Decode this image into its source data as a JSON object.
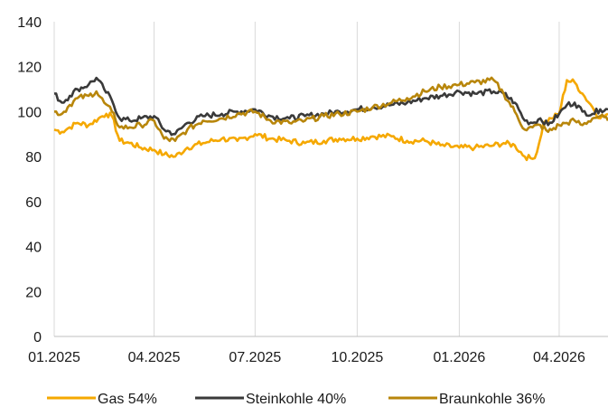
{
  "chart_data": {
    "type": "line",
    "title": "",
    "xlabel": "",
    "ylabel": "",
    "ylim": [
      0,
      140
    ],
    "y_ticks": [
      0,
      20,
      40,
      60,
      80,
      100,
      120,
      140
    ],
    "x_range": [
      "2025-01-01",
      "2026-05-15"
    ],
    "x_tick_labels": [
      "01.2025",
      "04.2025",
      "07.2025",
      "10.2025",
      "01.2026",
      "04.2026"
    ],
    "x_tick_dates": [
      "2025-01-01",
      "2025-04-01",
      "2025-07-01",
      "2025-10-01",
      "2026-01-01",
      "2026-04-01"
    ],
    "grid": {
      "vertical": true,
      "horizontal": false
    },
    "legend_position": "bottom",
    "series": [
      {
        "name": "Gas 54%",
        "color": "#f5a800",
        "x": [
          "2025-01-01",
          "2025-01-08",
          "2025-01-15",
          "2025-01-22",
          "2025-02-01",
          "2025-02-10",
          "2025-02-17",
          "2025-02-22",
          "2025-03-01",
          "2025-03-10",
          "2025-03-20",
          "2025-04-01",
          "2025-04-10",
          "2025-04-20",
          "2025-05-01",
          "2025-05-15",
          "2025-06-01",
          "2025-06-15",
          "2025-07-01",
          "2025-07-15",
          "2025-08-01",
          "2025-08-15",
          "2025-09-01",
          "2025-09-15",
          "2025-10-01",
          "2025-10-15",
          "2025-11-01",
          "2025-11-15",
          "2025-12-01",
          "2025-12-15",
          "2026-01-01",
          "2026-01-15",
          "2026-02-01",
          "2026-02-10",
          "2026-02-20",
          "2026-03-01",
          "2026-03-08",
          "2026-03-12",
          "2026-03-18",
          "2026-03-25",
          "2026-04-01",
          "2026-04-08",
          "2026-04-15",
          "2026-04-22",
          "2026-05-01",
          "2026-05-08",
          "2026-05-15"
        ],
        "values": [
          92,
          91,
          93,
          95,
          94,
          97,
          99,
          98,
          87,
          86,
          84,
          83,
          81,
          80,
          84,
          86,
          88,
          87,
          90,
          88,
          87,
          86,
          87,
          88,
          88,
          89,
          89,
          87,
          87,
          85,
          84,
          84,
          85,
          86,
          85,
          80,
          79,
          82,
          95,
          97,
          99,
          114,
          113,
          108,
          102,
          97,
          99
        ]
      },
      {
        "name": "Steinkohle 40%",
        "color": "#3a3a3a",
        "x": [
          "2025-01-01",
          "2025-01-08",
          "2025-01-15",
          "2025-01-22",
          "2025-02-01",
          "2025-02-08",
          "2025-02-15",
          "2025-02-22",
          "2025-03-01",
          "2025-03-10",
          "2025-03-20",
          "2025-04-01",
          "2025-04-10",
          "2025-04-20",
          "2025-05-01",
          "2025-05-15",
          "2025-06-01",
          "2025-06-15",
          "2025-07-01",
          "2025-07-15",
          "2025-08-01",
          "2025-08-15",
          "2025-09-01",
          "2025-09-15",
          "2025-10-01",
          "2025-10-15",
          "2025-11-01",
          "2025-11-15",
          "2025-12-01",
          "2025-12-15",
          "2026-01-01",
          "2026-01-15",
          "2026-02-01",
          "2026-02-10",
          "2026-02-20",
          "2026-03-01",
          "2026-03-08",
          "2026-03-15",
          "2026-03-22",
          "2026-04-01",
          "2026-04-08",
          "2026-04-15",
          "2026-04-22",
          "2026-05-01",
          "2026-05-08",
          "2026-05-15"
        ],
        "values": [
          108,
          104,
          107,
          110,
          112,
          115,
          110,
          105,
          97,
          96,
          97,
          98,
          92,
          90,
          95,
          98,
          99,
          100,
          101,
          98,
          97,
          98,
          99,
          100,
          101,
          102,
          103,
          104,
          106,
          107,
          109,
          108,
          109,
          108,
          104,
          96,
          95,
          97,
          94,
          99,
          103,
          104,
          100,
          99,
          101,
          101
        ]
      },
      {
        "name": "Braunkohle 36%",
        "color": "#b8860b",
        "x": [
          "2025-01-01",
          "2025-01-08",
          "2025-01-15",
          "2025-01-22",
          "2025-02-01",
          "2025-02-08",
          "2025-02-15",
          "2025-02-22",
          "2025-03-01",
          "2025-03-10",
          "2025-03-20",
          "2025-04-01",
          "2025-04-10",
          "2025-04-20",
          "2025-05-01",
          "2025-05-15",
          "2025-06-01",
          "2025-06-15",
          "2025-07-01",
          "2025-07-15",
          "2025-08-01",
          "2025-08-15",
          "2025-09-01",
          "2025-09-15",
          "2025-10-01",
          "2025-10-15",
          "2025-11-01",
          "2025-11-15",
          "2025-12-01",
          "2025-12-15",
          "2026-01-01",
          "2026-01-15",
          "2026-02-01",
          "2026-02-10",
          "2026-02-20",
          "2026-03-01",
          "2026-03-08",
          "2026-03-15",
          "2026-03-22",
          "2026-04-01",
          "2026-04-08",
          "2026-04-15",
          "2026-04-22",
          "2026-05-01",
          "2026-05-08",
          "2026-05-15"
        ],
        "values": [
          100,
          99,
          103,
          106,
          107,
          109,
          104,
          100,
          93,
          93,
          94,
          96,
          88,
          87,
          92,
          96,
          97,
          99,
          100,
          96,
          95,
          96,
          98,
          99,
          100,
          102,
          104,
          106,
          109,
          111,
          112,
          113,
          114,
          108,
          100,
          92,
          93,
          94,
          91,
          94,
          95,
          96,
          94,
          97,
          98,
          96
        ]
      }
    ]
  }
}
